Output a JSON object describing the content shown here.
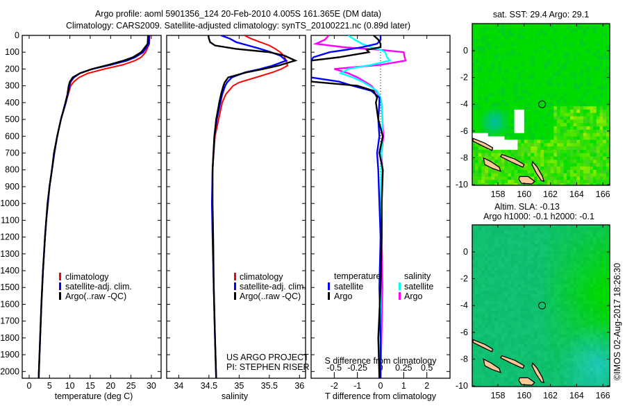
{
  "title": {
    "line1": "Argo profile: aoml 5901356_124 20-Feb-2010 4.005S 161.365E (DM data)",
    "line2": "Climatology: CARS2009. Satellite-adjusted climatology: synTS_20100221.nc (0.89d later)"
  },
  "legend_profiles": {
    "climatology": "climatology",
    "satellite": "satellite-adj. clim.",
    "argo": "Argo(..raw -QC)"
  },
  "legend_diff": {
    "temperature": "temperature",
    "salinity": "salinity",
    "satellite": "satellite",
    "argo": "Argo"
  },
  "credits": {
    "project": "US ARGO PROJECT",
    "pi": "PI: STEPHEN RISER"
  },
  "watermark": "©IMOS 02-Aug-2017 18:26:30",
  "colors": {
    "climatology": "#ff0000",
    "satellite_t": "#0000ff",
    "argo_t": "#000000",
    "satellite_s": "#00ffff",
    "argo_s": "#ff00ff",
    "land": "#ffc896"
  },
  "chart_data": [
    {
      "type": "line",
      "xlabel": "temperature (deg C)",
      "ylim": [
        0,
        2040
      ],
      "xlim": [
        -1.7,
        32.4
      ],
      "xticks": [
        "0",
        "5",
        "10",
        "15",
        "20",
        "25",
        "30"
      ],
      "yticks": [
        "0",
        "100",
        "200",
        "300",
        "400",
        "500",
        "600",
        "700",
        "800",
        "900",
        "1000",
        "1100",
        "1200",
        "1300",
        "1400",
        "1500",
        "1600",
        "1700",
        "1800",
        "1900",
        "2000"
      ],
      "depth": [
        0,
        50,
        100,
        130,
        150,
        175,
        200,
        225,
        250,
        275,
        300,
        350,
        400,
        500,
        600,
        700,
        800,
        900,
        1000,
        1100,
        1200,
        1400,
        1600,
        1800,
        2000,
        2040
      ],
      "series": [
        {
          "name": "climatology",
          "values": [
            29.6,
            29.5,
            28.6,
            27.5,
            26,
            23,
            18.5,
            14.5,
            12.3,
            11,
            10.2,
            9.6,
            9.0,
            7.8,
            6.9,
            6.2,
            5.6,
            5.0,
            4.6,
            4.2,
            3.9,
            3.4,
            3.0,
            2.7,
            2.4,
            2.35
          ]
        },
        {
          "name": "satellite-adj. clim.",
          "values": [
            29.5,
            29.4,
            28.0,
            26.0,
            24.0,
            20.0,
            15.5,
            12.5,
            11.0,
            10.2,
            9.9,
            9.5,
            9.0,
            7.8,
            6.9,
            6.2,
            5.6,
            5.0,
            4.6,
            4.2,
            3.9,
            3.4,
            3.0,
            2.7,
            2.4,
            2.35
          ]
        },
        {
          "name": "Argo(..raw -QC)",
          "values": [
            29.2,
            29.1,
            27.5,
            25.5,
            23.2,
            19.5,
            15.5,
            12.5,
            10.7,
            10.0,
            9.7,
            9.4,
            8.9,
            7.8,
            6.9,
            6.1,
            5.6,
            5.0,
            4.5,
            4.2,
            3.9,
            3.4,
            3.0,
            2.7,
            2.4,
            2.35
          ]
        }
      ]
    },
    {
      "type": "line",
      "xlabel": "salinity",
      "ylim": [
        0,
        2040
      ],
      "xlim": [
        33.8,
        36.1
      ],
      "xticks": [
        "34",
        "34.5",
        "35",
        "35.5",
        "36"
      ],
      "depth": [
        0,
        20,
        40,
        60,
        80,
        100,
        120,
        150,
        180,
        200,
        220,
        250,
        280,
        300,
        350,
        400,
        500,
        600,
        800,
        1000,
        1200,
        1500,
        1800,
        2040
      ],
      "series": [
        {
          "name": "climatology",
          "values": [
            35.09,
            35.2,
            35.35,
            35.5,
            35.6,
            35.68,
            35.74,
            35.78,
            35.8,
            35.7,
            35.55,
            35.28,
            35.0,
            34.9,
            34.78,
            34.72,
            34.66,
            34.6,
            34.56,
            34.55,
            34.56,
            34.58,
            34.6,
            34.62
          ]
        },
        {
          "name": "satellite-adj. clim.",
          "values": [
            34.7,
            34.85,
            34.95,
            35.15,
            35.35,
            35.53,
            35.68,
            35.78,
            35.55,
            35.35,
            35.1,
            34.88,
            34.8,
            34.77,
            34.72,
            34.69,
            34.63,
            34.59,
            34.56,
            34.55,
            34.56,
            34.58,
            34.6,
            34.62
          ]
        },
        {
          "name": "Argo(..raw -QC)",
          "values": [
            34.49,
            34.5,
            34.52,
            34.6,
            34.95,
            35.5,
            35.75,
            35.93,
            35.65,
            35.4,
            35.12,
            34.82,
            34.76,
            34.74,
            34.7,
            34.67,
            34.62,
            34.59,
            34.56,
            34.56,
            34.57,
            34.58,
            34.6,
            34.62
          ]
        }
      ]
    },
    {
      "type": "line",
      "xlabel": "T difference from climatology",
      "x2label": "S difference from climatology",
      "ylim": [
        0,
        2040
      ],
      "xlim": [
        -3,
        3
      ],
      "x2lim": [
        -0.75,
        0.75
      ],
      "xticks": [
        "-2",
        "-1",
        "0",
        "1",
        "2"
      ],
      "x2ticks": [
        "-0.5",
        "-0.25",
        "0",
        "0.25",
        "0.5"
      ],
      "depth": [
        0,
        25,
        50,
        70,
        86,
        100,
        130,
        150,
        175,
        200,
        225,
        250,
        275,
        300,
        330,
        370,
        400,
        500,
        600,
        700,
        800,
        1000,
        1200,
        1500,
        1800,
        2040
      ],
      "series": [
        {
          "name": "temperature satellite",
          "axis": "T",
          "values": [
            0,
            0,
            -0.15,
            -0.8,
            -1.5,
            -2.2,
            -2.9,
            -3,
            -3,
            -3,
            -3,
            -3,
            -1.8,
            -1.2,
            -0.4,
            -0.05,
            -0.05,
            -0.1,
            -0.05,
            -0.15,
            -0.1,
            -0.05,
            0,
            -0.05,
            0,
            0
          ]
        },
        {
          "name": "temperature Argo",
          "axis": "T",
          "values": [
            -0.3,
            -0.1,
            0,
            0,
            -0.6,
            -0.5,
            -1.8,
            -3,
            -3,
            -3,
            -3,
            -3,
            -3,
            -1,
            -0.3,
            -0.15,
            -0.2,
            -0.1,
            0.1,
            -0.05,
            0.1,
            0.05,
            0.05,
            0,
            -0.1,
            -0.05
          ]
        },
        {
          "name": "salinity satellite",
          "axis": "S",
          "values": [
            -0.35,
            -0.28,
            -0.2,
            -0.1,
            0,
            0.05,
            0.07,
            0.1,
            -0.1,
            -0.35,
            -0.43,
            -0.3,
            -0.2,
            -0.12,
            -0.04,
            0,
            0.01,
            0.02,
            0.02,
            0.01,
            0.01,
            0.0,
            0.01,
            0.0,
            0.0,
            0.0
          ]
        },
        {
          "name": "salinity Argo",
          "axis": "S",
          "values": [
            -0.56,
            -0.6,
            -0.7,
            -0.4,
            0,
            0.25,
            0.26,
            0.27,
            0.0,
            -0.5,
            -0.35,
            -0.25,
            -0.17,
            -0.1,
            -0.05,
            0,
            0.01,
            0.02,
            0.03,
            0.01,
            0.02,
            0.0,
            0.01,
            0.02,
            0.01,
            0.0
          ]
        }
      ]
    },
    {
      "type": "heatmap",
      "title": "sat. SST: 29.4 Argo: 29.1",
      "xlim": [
        156.05,
        166.5
      ],
      "ylim": [
        -10,
        2
      ],
      "xticks": [
        "158",
        "160",
        "162",
        "164",
        "166"
      ],
      "yticks": [
        "0",
        "-2",
        "-4",
        "-6",
        "-8",
        "-10"
      ],
      "float_position": {
        "lon": 161.365,
        "lat": -4.005
      }
    },
    {
      "type": "heatmap",
      "title": "Altim. SLA: -0.13",
      "subtitle": "Argo h1000: -0.1 h2000: -0.1",
      "xlim": [
        156.05,
        166.5
      ],
      "ylim": [
        -10,
        2
      ],
      "xticks": [
        "158",
        "160",
        "162",
        "164",
        "166"
      ],
      "yticks": [
        "0",
        "-2",
        "-4",
        "-6",
        "-8",
        "-10"
      ],
      "float_position": {
        "lon": 161.365,
        "lat": -4.005
      }
    }
  ]
}
